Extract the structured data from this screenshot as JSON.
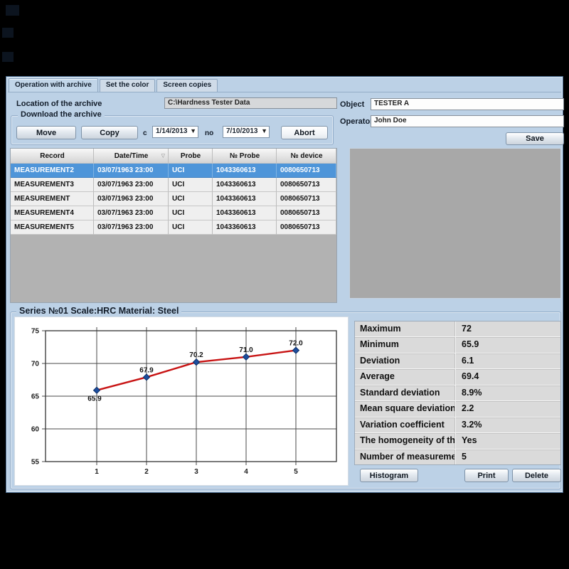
{
  "tabs": [
    {
      "label": "Operation with archive",
      "active": true
    },
    {
      "label": "Set the color",
      "active": false
    },
    {
      "label": "Screen copies",
      "active": false
    }
  ],
  "archive": {
    "location_label": "Location of the archive",
    "location_value": "C:\\Hardness Tester Data"
  },
  "download": {
    "title": "Download the archive",
    "move_label": "Move",
    "copy_label": "Copy",
    "from_label": "c",
    "from_value": "1/14/2013",
    "to_label": "no",
    "to_value": "7/10/2013",
    "abort_label": "Abort"
  },
  "header_fields": {
    "object_label": "Object",
    "object_value": "TESTER A",
    "operator_label": "Operator",
    "operator_value": "John Doe",
    "save_label": "Save"
  },
  "table": {
    "columns": [
      "Record",
      "Date/Time",
      "Probe",
      "№ Probe",
      "№ device"
    ],
    "sorted_column": "Date/Time",
    "selected_index": 0,
    "rows": [
      [
        "MEASUREMENT2",
        "03/07/1963 23:00",
        "UCI",
        "1043360613",
        "0080650713"
      ],
      [
        "MEASUREMENT3",
        "03/07/1963 23:00",
        "UCI",
        "1043360613",
        "0080650713"
      ],
      [
        "MEASUREMENT",
        "03/07/1963 23:00",
        "UCI",
        "1043360613",
        "0080650713"
      ],
      [
        "MEASUREMENT4",
        "03/07/1963 23:00",
        "UCI",
        "1043360613",
        "0080650713"
      ],
      [
        "MEASUREMENT5",
        "03/07/1963 23:00",
        "UCI",
        "1043360613",
        "0080650713"
      ]
    ]
  },
  "series": {
    "title": "Series №01 Scale:HRC Material: Steel"
  },
  "chart_data": {
    "type": "line",
    "x": [
      1,
      2,
      3,
      4,
      5
    ],
    "values": [
      65.9,
      67.9,
      70.2,
      71.0,
      72.0
    ],
    "point_labels": [
      "65.9",
      "67.9",
      "70.2",
      "71.0",
      "72.0"
    ],
    "xticks": [
      "1",
      "2",
      "3",
      "4",
      "5"
    ],
    "yticks": [
      55,
      60,
      65,
      70,
      75
    ],
    "ylim": [
      55,
      75
    ],
    "grid": true,
    "legend": "none",
    "title": "Series №01 Scale:HRC Material: Steel",
    "xlabel": "",
    "ylabel": "",
    "line_color": "#c81414",
    "marker_color": "#1d4e9e"
  },
  "stats": {
    "rows": [
      {
        "label": "Maximum",
        "value": "72"
      },
      {
        "label": "Minimum",
        "value": "65.9"
      },
      {
        "label": "Deviation",
        "value": "6.1"
      },
      {
        "label": "Average",
        "value": "69.4"
      },
      {
        "label": "Standard deviation",
        "value": "8.9%"
      },
      {
        "label": "Mean square deviation",
        "value": "2.2"
      },
      {
        "label": "Variation coefficient",
        "value": "3.2%"
      },
      {
        "label": "The homogeneity of the s...",
        "value": "Yes"
      },
      {
        "label": "Number of measurements",
        "value": "5"
      }
    ]
  },
  "footer_buttons": {
    "histogram_label": "Histogram",
    "print_label": "Print",
    "delete_label": "Delete"
  },
  "colors": {
    "selection": "#4e95d9",
    "chart_line": "#c81414",
    "chart_marker": "#1d4e9e",
    "window_bg": "#bcd1e6"
  }
}
